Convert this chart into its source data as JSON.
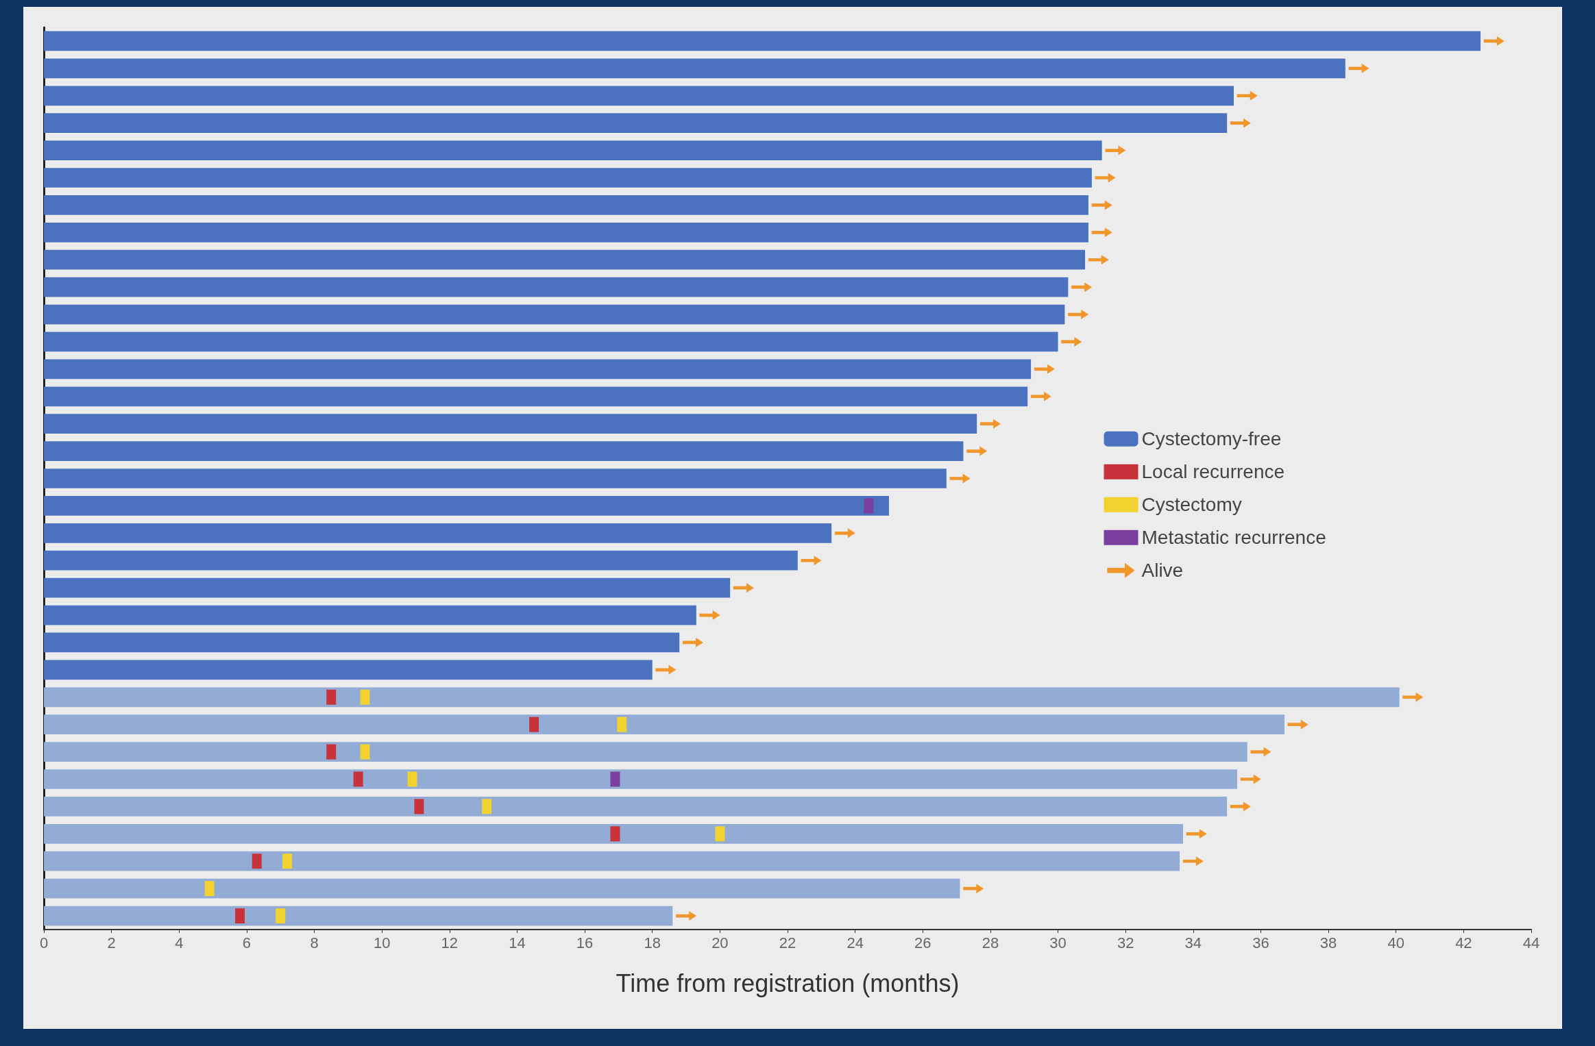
{
  "chart_data": {
    "type": "bar",
    "orientation": "horizontal",
    "xlabel": "Time from registration (months)",
    "categories": [
      null,
      null,
      null,
      null,
      null,
      null,
      null,
      null,
      null,
      null,
      null,
      null,
      null,
      null,
      null,
      null,
      null,
      null,
      null,
      null,
      null,
      null,
      null,
      null,
      null,
      null,
      null,
      null,
      null,
      null,
      null,
      null,
      null
    ],
    "series": [
      {
        "name": "Cystectomy-free",
        "color": "#4a72bf",
        "colors": [
          "#4a72bf",
          "#4a72bf",
          "#4a72bf",
          "#4a72bf",
          "#4a72bf",
          "#4a72bf",
          "#4a72bf",
          "#4a72bf",
          "#4a72bf",
          "#4a72bf",
          "#4a72bf",
          "#4a72bf",
          "#4a72bf",
          "#4a72bf",
          "#4a72bf",
          "#4a72bf",
          "#4a72bf",
          "#4a72bf",
          "#4a72bf",
          "#4a72bf",
          "#4a72bf",
          "#4a72bf",
          "#4a72bf",
          "#4a72bf",
          "#93acd6",
          "#93acd6",
          "#93acd6",
          "#93acd6",
          "#93acd6",
          "#93acd6",
          "#93acd6",
          "#93acd6",
          "#93acd6"
        ],
        "values": [
          42.5,
          38.5,
          35.2,
          35.0,
          31.3,
          31.0,
          30.9,
          30.9,
          30.8,
          30.3,
          30.2,
          30.0,
          29.2,
          29.1,
          27.6,
          27.2,
          26.7,
          25.0,
          23.3,
          22.3,
          20.3,
          19.3,
          18.8,
          18.0,
          40.1,
          36.7,
          35.6,
          35.3,
          35.0,
          33.7,
          33.6,
          27.1,
          18.6
        ]
      },
      {
        "name": "Local recurrence",
        "type": "scatter",
        "marker": "square",
        "color": "#c8323a",
        "values": [
          null,
          null,
          null,
          null,
          null,
          null,
          null,
          null,
          null,
          null,
          null,
          null,
          null,
          null,
          null,
          null,
          null,
          null,
          null,
          null,
          null,
          null,
          null,
          null,
          8.5,
          14.5,
          8.5,
          9.3,
          11.1,
          16.9,
          6.3,
          null,
          5.8
        ]
      },
      {
        "name": "Cystectomy",
        "type": "scatter",
        "marker": "square",
        "color": "#f2d22e",
        "values": [
          null,
          null,
          null,
          null,
          null,
          null,
          null,
          null,
          null,
          null,
          null,
          null,
          null,
          null,
          null,
          null,
          null,
          null,
          null,
          null,
          null,
          null,
          null,
          null,
          9.5,
          17.1,
          9.5,
          10.9,
          13.1,
          20.0,
          7.2,
          4.9,
          7.0
        ]
      },
      {
        "name": "Metastatic recurrence",
        "type": "scatter",
        "marker": "square",
        "color": "#7b3fa0",
        "values": [
          null,
          null,
          null,
          null,
          null,
          null,
          null,
          null,
          null,
          null,
          null,
          null,
          null,
          null,
          null,
          null,
          null,
          24.4,
          null,
          null,
          null,
          null,
          null,
          null,
          null,
          null,
          null,
          16.9,
          null,
          null,
          null,
          null,
          null
        ]
      },
      {
        "name": "Alive",
        "type": "scatter",
        "color": "#f0962a",
        "values": [
          42.9,
          38.9,
          35.6,
          35.4,
          31.7,
          31.4,
          31.3,
          31.3,
          31.2,
          30.7,
          30.6,
          30.4,
          29.6,
          29.5,
          28.0,
          27.6,
          27.1,
          null,
          23.7,
          22.7,
          20.7,
          19.7,
          19.2,
          18.4,
          40.5,
          37.1,
          36.0,
          35.7,
          35.4,
          34.1,
          34.0,
          27.5,
          19.0
        ]
      }
    ],
    "xlim": [
      0,
      44
    ],
    "xticks": [
      0,
      2,
      4,
      6,
      8,
      10,
      12,
      14,
      16,
      18,
      20,
      22,
      24,
      26,
      28,
      30,
      32,
      34,
      36,
      38,
      40,
      42,
      44
    ],
    "legend": "right",
    "grid": false
  }
}
